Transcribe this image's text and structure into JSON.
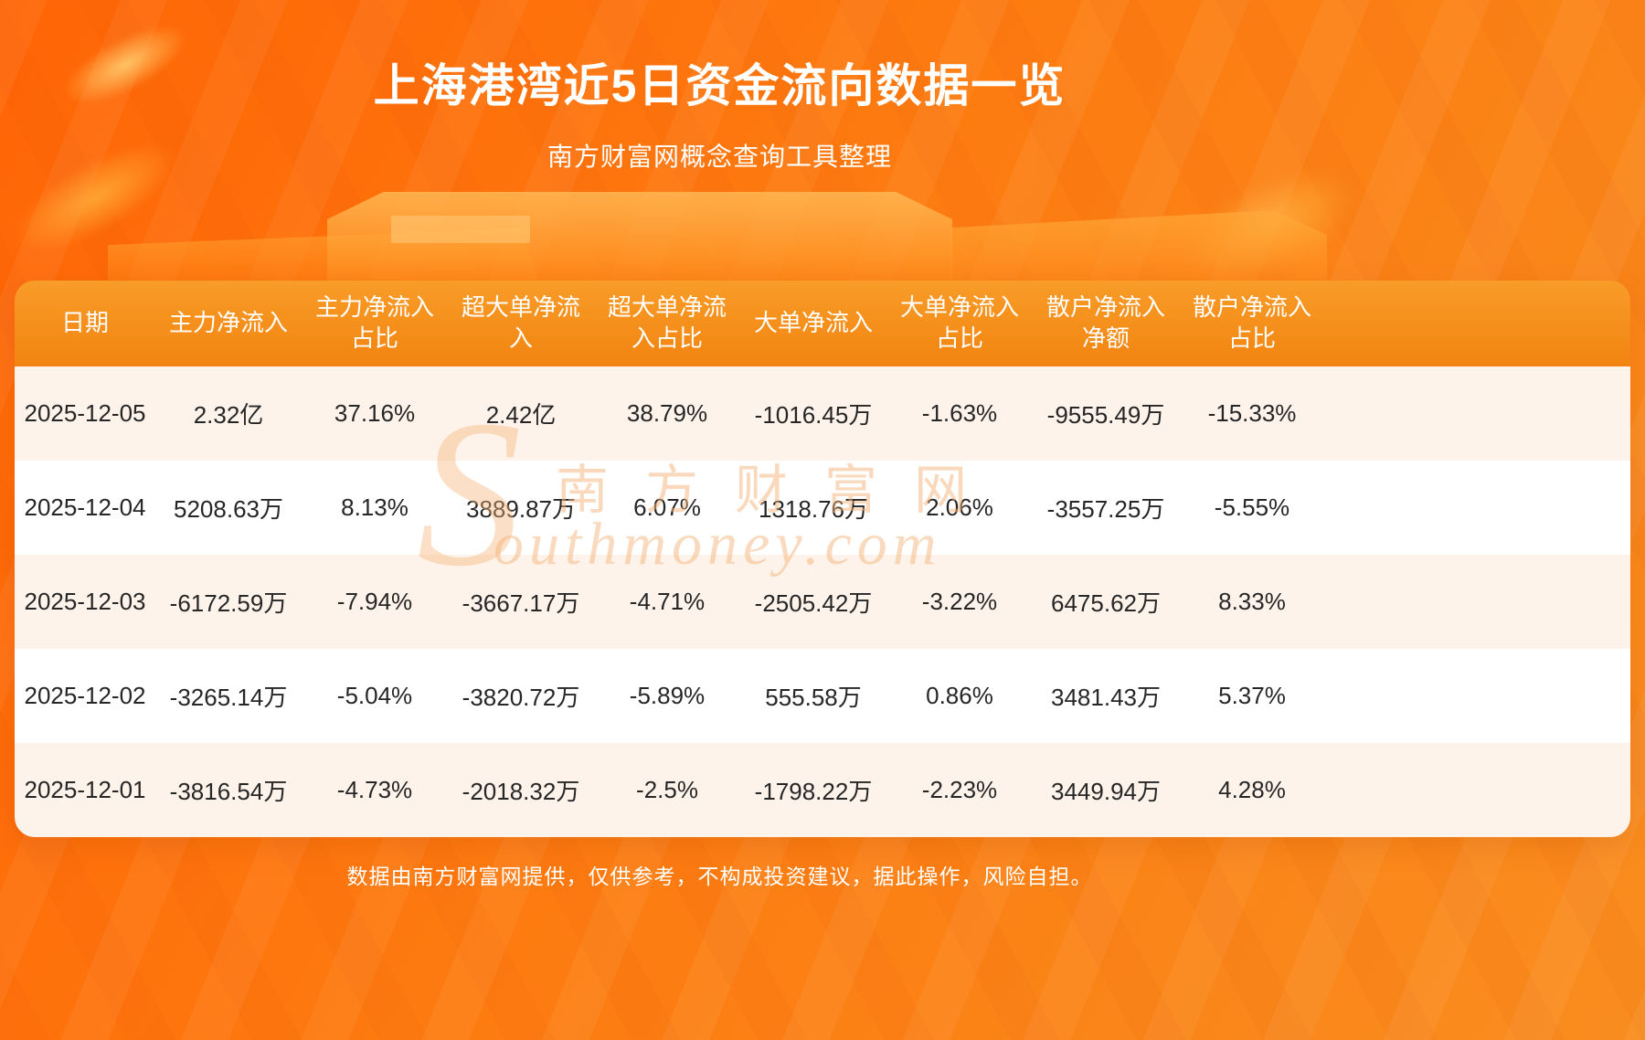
{
  "page": {
    "title": "上海港湾近5日资金流向数据一览",
    "subtitle": "南方财富网概念查询工具整理",
    "footer": "数据由南方财富网提供，仅供参考，不构成投资建议，据此操作，风险自担。",
    "watermark_s": "S",
    "watermark_cn": "南方财富网",
    "watermark_en": "outhmoney.com"
  },
  "chart_data": {
    "type": "table",
    "title": "上海港湾近5日资金流向数据一览",
    "columns": [
      "日期",
      "主力净流入",
      "主力净流入占比",
      "超大单净流入",
      "超大单净流入占比",
      "大单净流入",
      "大单净流入占比",
      "散户净流入净额",
      "散户净流入占比"
    ],
    "rows": [
      [
        "2025-12-05",
        "2.32亿",
        "37.16%",
        "2.42亿",
        "38.79%",
        "-1016.45万",
        "-1.63%",
        "-9555.49万",
        "-15.33%"
      ],
      [
        "2025-12-04",
        "5208.63万",
        "8.13%",
        "3889.87万",
        "6.07%",
        "1318.76万",
        "2.06%",
        "-3557.25万",
        "-5.55%"
      ],
      [
        "2025-12-03",
        "-6172.59万",
        "-7.94%",
        "-3667.17万",
        "-4.71%",
        "-2505.42万",
        "-3.22%",
        "6475.62万",
        "8.33%"
      ],
      [
        "2025-12-02",
        "-3265.14万",
        "-5.04%",
        "-3820.72万",
        "-5.89%",
        "555.58万",
        "0.86%",
        "3481.43万",
        "5.37%"
      ],
      [
        "2025-12-01",
        "-3816.54万",
        "-4.73%",
        "-2018.32万",
        "-2.5%",
        "-1798.22万",
        "-2.23%",
        "3449.94万",
        "4.28%"
      ]
    ]
  },
  "colors": {
    "bg_orange_top": "#ff6505",
    "bg_orange_bottom": "#f98d1e",
    "header_orange": "#f28410",
    "row_cream": "#fdf3ea",
    "row_white": "#ffffff",
    "text_dark": "#262626",
    "text_white": "#ffffff",
    "watermark_peach": "#f5b278"
  }
}
